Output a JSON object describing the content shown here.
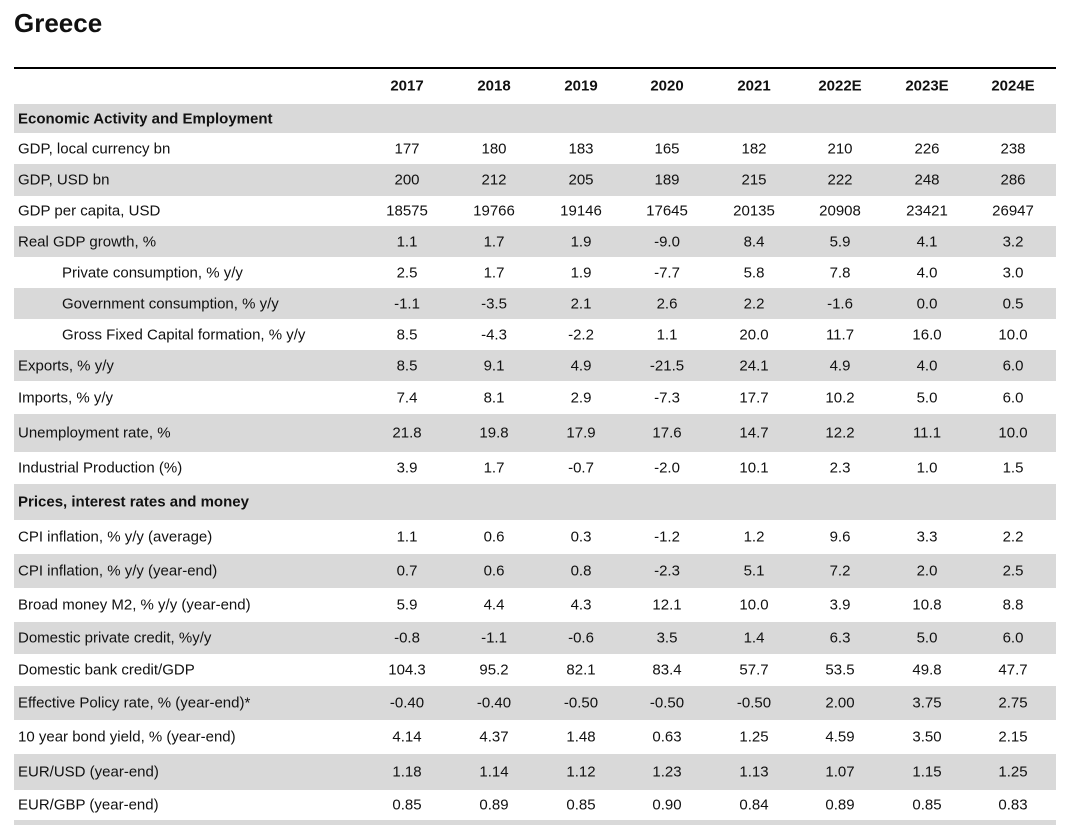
{
  "title": "Greece",
  "table": {
    "columns": [
      "2017",
      "2018",
      "2019",
      "2020",
      "2021",
      "2022E",
      "2023E",
      "2024E"
    ],
    "sections": [
      {
        "title": "Economic Activity and Employment",
        "rows": [
          {
            "label": "GDP, local currency bn",
            "values": [
              "177",
              "180",
              "183",
              "165",
              "182",
              "210",
              "226",
              "238"
            ]
          },
          {
            "label": "GDP, USD bn",
            "values": [
              "200",
              "212",
              "205",
              "189",
              "215",
              "222",
              "248",
              "286"
            ]
          },
          {
            "label": "GDP per capita, USD",
            "values": [
              "18575",
              "19766",
              "19146",
              "17645",
              "20135",
              "20908",
              "23421",
              "26947"
            ]
          },
          {
            "label": "Real GDP growth, %",
            "values": [
              "1.1",
              "1.7",
              "1.9",
              "-9.0",
              "8.4",
              "5.9",
              "4.1",
              "3.2"
            ]
          },
          {
            "label": "Private consumption, % y/y",
            "values": [
              "2.5",
              "1.7",
              "1.9",
              "-7.7",
              "5.8",
              "7.8",
              "4.0",
              "3.0"
            ]
          },
          {
            "label": "Government consumption, % y/y",
            "values": [
              "-1.1",
              "-3.5",
              "2.1",
              "2.6",
              "2.2",
              "-1.6",
              "0.0",
              "0.5"
            ]
          },
          {
            "label": "Gross Fixed Capital formation, % y/y",
            "values": [
              "8.5",
              "-4.3",
              "-2.2",
              "1.1",
              "20.0",
              "11.7",
              "16.0",
              "10.0"
            ]
          },
          {
            "label": "Exports, % y/y",
            "values": [
              "8.5",
              "9.1",
              "4.9",
              "-21.5",
              "24.1",
              "4.9",
              "4.0",
              "6.0"
            ]
          },
          {
            "label": "Imports, % y/y",
            "values": [
              "7.4",
              "8.1",
              "2.9",
              "-7.3",
              "17.7",
              "10.2",
              "5.0",
              "6.0"
            ]
          },
          {
            "label": "Unemployment rate, %",
            "values": [
              "21.8",
              "19.8",
              "17.9",
              "17.6",
              "14.7",
              "12.2",
              "11.1",
              "10.0"
            ]
          },
          {
            "label": "Industrial Production (%)",
            "values": [
              "3.9",
              "1.7",
              "-0.7",
              "-2.0",
              "10.1",
              "2.3",
              "1.0",
              "1.5"
            ]
          }
        ]
      },
      {
        "title": "Prices, interest rates and money",
        "rows": [
          {
            "label": "CPI inflation, % y/y (average)",
            "values": [
              "1.1",
              "0.6",
              "0.3",
              "-1.2",
              "1.2",
              "9.6",
              "3.3",
              "2.2"
            ]
          },
          {
            "label": "CPI inflation, % y/y (year-end)",
            "values": [
              "0.7",
              "0.6",
              "0.8",
              "-2.3",
              "5.1",
              "7.2",
              "2.0",
              "2.5"
            ]
          },
          {
            "label": "Broad money M2, % y/y (year-end)",
            "values": [
              "5.9",
              "4.4",
              "4.3",
              "12.1",
              "10.0",
              "3.9",
              "10.8",
              "8.8"
            ]
          },
          {
            "label": "Domestic private credit, %y/y",
            "values": [
              "-0.8",
              "-1.1",
              "-0.6",
              "3.5",
              "1.4",
              "6.3",
              "5.0",
              "6.0"
            ]
          },
          {
            "label": "Domestic bank credit/GDP",
            "values": [
              "104.3",
              "95.2",
              "82.1",
              "83.4",
              "57.7",
              "53.5",
              "49.8",
              "47.7"
            ]
          },
          {
            "label": "Effective Policy rate, % (year-end)*",
            "values": [
              "-0.40",
              "-0.40",
              "-0.50",
              "-0.50",
              "-0.50",
              "2.00",
              "3.75",
              "2.75"
            ]
          },
          {
            "label": "10 year bond yield, % (year-end)",
            "values": [
              "4.14",
              "4.37",
              "1.48",
              "0.63",
              "1.25",
              "4.59",
              "3.50",
              "2.15"
            ]
          },
          {
            "label": "EUR/USD (year-end)",
            "values": [
              "1.18",
              "1.14",
              "1.12",
              "1.23",
              "1.13",
              "1.07",
              "1.15",
              "1.25"
            ]
          },
          {
            "label": "EUR/GBP (year-end)",
            "values": [
              "0.85",
              "0.89",
              "0.85",
              "0.90",
              "0.84",
              "0.89",
              "0.85",
              "0.83"
            ]
          }
        ]
      }
    ]
  }
}
